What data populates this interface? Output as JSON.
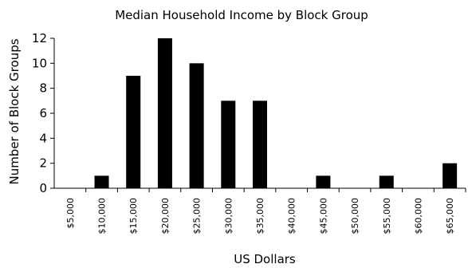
{
  "chart_data": {
    "type": "bar",
    "title": "Median Household Income by Block Group",
    "xlabel": "US Dollars",
    "ylabel": "Number of Block Groups",
    "categories": [
      "$5,000",
      "$10,000",
      "$15,000",
      "$20,000",
      "$25,000",
      "$30,000",
      "$35,000",
      "$40,000",
      "$45,000",
      "$50,000",
      "$55,000",
      "$60,000",
      "$65,000"
    ],
    "values": [
      0,
      1,
      9,
      12,
      10,
      7,
      7,
      0,
      1,
      0,
      1,
      0,
      2
    ],
    "ylim": [
      0,
      12
    ],
    "yticks": [
      0,
      2,
      4,
      6,
      8,
      10,
      12
    ],
    "grid": false,
    "legend": "none",
    "bar_color": "#000000"
  }
}
